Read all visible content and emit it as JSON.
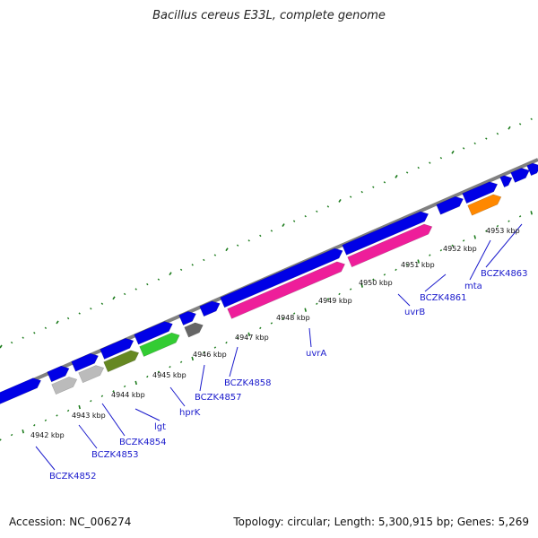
{
  "title": "Bacillus cereus E33L, complete genome",
  "footer": {
    "accession": "Accession: NC_006274",
    "summary": "Topology: circular; Length: 5,300,915 bp; Genes: 5,269"
  },
  "colors": {
    "backbone": "#808080",
    "gene_default": "#0000e6",
    "tick": "#1a7a1a",
    "label": "#1a1acc",
    "magenta": "#ee1e9a",
    "green": "#33cc33",
    "olive": "#668822",
    "orange": "#ff8800",
    "gray": "#666666",
    "lightgray": "#bbbbbb"
  },
  "tick_labels": [
    "4942 kbp",
    "4943 kbp",
    "4944 kbp",
    "4945 kbp",
    "4946 kbp",
    "4947 kbp",
    "4948 kbp",
    "4949 kbp",
    "4950 kbp",
    "4951 kbp",
    "4952 kbp",
    "4953 kbp"
  ],
  "gene_labels": [
    "BCZK4852",
    "BCZK4853",
    "BCZK4854",
    "lgt",
    "hprK",
    "BCZK4857",
    "BCZK4858",
    "uvrA",
    "uvrB",
    "BCZK4861",
    "mta",
    "BCZK4863"
  ]
}
